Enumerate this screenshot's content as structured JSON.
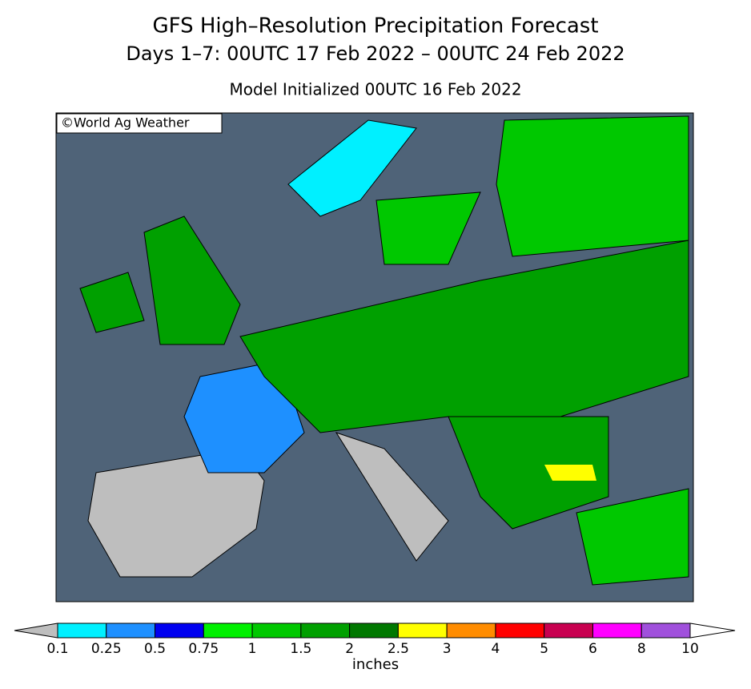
{
  "header": {
    "title": "GFS High–Resolution Precipitation Forecast",
    "subtitle": "Days 1–7: 00UTC 17 Feb 2022 – 00UTC 24 Feb 2022",
    "init": "Model Initialized 00UTC 16 Feb 2022"
  },
  "map": {
    "credit": "©World Ag Weather"
  },
  "legend": {
    "ticks": [
      "0.1",
      "0.25",
      "0.5",
      "0.75",
      "1",
      "1.5",
      "2",
      "2.5",
      "3",
      "4",
      "5",
      "6",
      "8",
      "10"
    ],
    "below_color": "#bebebe",
    "above_color": "#ffffff",
    "colors": [
      "#00f0ff",
      "#1e90ff",
      "#0000f0",
      "#00f000",
      "#00c800",
      "#00a000",
      "#007800",
      "#ffff00",
      "#ff8c00",
      "#ff0000",
      "#c80050",
      "#ff00ff",
      "#a050dc"
    ],
    "unit": "inches"
  }
}
